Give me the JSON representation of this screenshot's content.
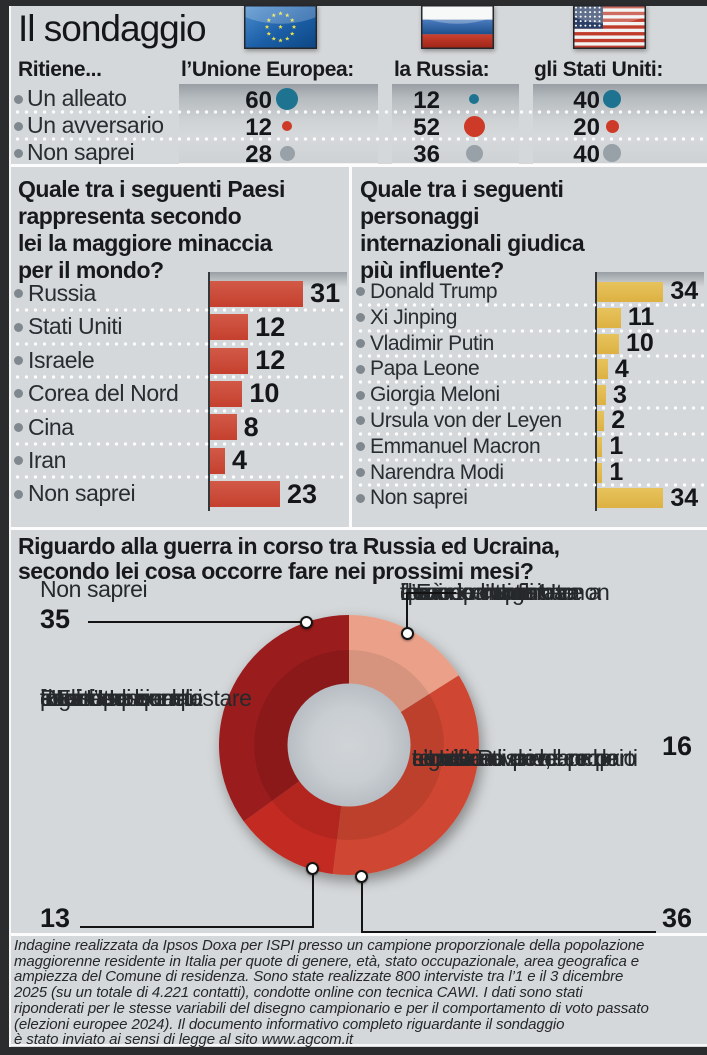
{
  "title": "Il sondaggio",
  "header": {
    "question": "Ritiene...",
    "flag_icons": [
      "eu-flag-icon",
      "russia-flag-icon",
      "usa-flag-icon"
    ]
  },
  "chart_data": [
    {
      "id": "stance-table",
      "type": "table",
      "title": "Ritiene...",
      "row_labels": [
        "Un alleato",
        "Un avversario",
        "Non saprei"
      ],
      "row_colors": [
        "#1d7390",
        "#cd3a28",
        "#98a1a7"
      ],
      "columns": [
        "l’Unione Europea:",
        "la Russia:",
        "gli Stati Uniti:"
      ],
      "series": [
        {
          "name": "l’Unione Europea:",
          "values": [
            60,
            12,
            28
          ]
        },
        {
          "name": "la Russia:",
          "values": [
            12,
            52,
            36
          ]
        },
        {
          "name": "gli Stati Uniti:",
          "values": [
            40,
            20,
            40
          ]
        }
      ]
    },
    {
      "id": "threat-bar",
      "type": "bar",
      "title": "Quale tra i seguenti Paesi rappresenta secondo lei la maggiore minaccia per il mondo?",
      "title_lines": [
        "Quale tra i seguenti Paesi",
        "rappresenta secondo",
        "lei la maggiore minaccia",
        "per il mondo?"
      ],
      "categories": [
        "Russia",
        "Stati Uniti",
        "Israele",
        "Corea del Nord",
        "Cina",
        "Iran",
        "Non saprei"
      ],
      "values": [
        31,
        12,
        12,
        10,
        8,
        4,
        23
      ],
      "bar_color": "#c5402e"
    },
    {
      "id": "influence-bar",
      "type": "bar",
      "title": "Quale tra i seguenti personaggi internazionali giudica più influente?",
      "title_lines": [
        "Quale tra i seguenti",
        "personaggi",
        "internazionali giudica",
        "più influente?"
      ],
      "categories": [
        "Donald Trump",
        "Xi Jinping",
        "Vladimir Putin",
        "Papa Leone",
        "Giorgia Meloni",
        "Ursula von der Leyen",
        "Emmanuel Macron",
        "Narendra Modi",
        "Non saprei"
      ],
      "values": [
        34,
        11,
        10,
        4,
        3,
        2,
        1,
        1,
        34
      ],
      "bar_color": "#ddb143"
    },
    {
      "id": "war-donut",
      "type": "pie",
      "donut": true,
      "title": "Riguardo alla guerra in corso tra Russia ed Ucraina, secondo lei cosa occorre fare nei prossimi mesi?",
      "title_lines": [
        "Riguardo alla guerra in corso tra Russia ed Ucraina,",
        "secondo lei cosa occorre fare nei prossimi mesi?"
      ],
      "slices": [
        {
          "value": 16,
          "color": "#eba189",
          "label": "L’Europa e gli Usa devono continuare a fornire armi fino a quando l’Ucraina non avrà riconquistato il suo territorio",
          "label_lines": [
            "L’Europa e gli Usa",
            "devono continuare a",
            "fornire armi fino a",
            "quando l’Ucraina non",
            "avrà riconquistato",
            "il suo territorio"
          ]
        },
        {
          "value": 36,
          "color": "#cf4733",
          "label": "L’Ucraina deve accettare un accordo con la Russia, anche a costo di perdere parti significative del proprio territorio",
          "label_lines": [
            "L’Ucraina deve",
            "accettare un accordo",
            "con la Russia, anche",
            "a costo di perdere parti",
            "significative del proprio",
            "territorio"
          ]
        },
        {
          "value": 13,
          "color": "#c32a21",
          "label": "L’Europa e gli Usa devono interrompere la fornitura di armi anche se questo permettesse alla Russia di conquistare tutta l’Ucraina",
          "label_lines": [
            "L’Europa",
            "e gli Usa",
            "devono",
            "interrompere la",
            "fornitura di armi",
            "anche se questo",
            "permettesse alla",
            "Russia di conquistare",
            "tutta l’Ucraina"
          ]
        },
        {
          "value": 35,
          "color": "#9a1b1f",
          "label": "Non saprei",
          "label_lines": [
            "Non saprei"
          ]
        }
      ]
    }
  ],
  "footer": {
    "lines": [
      "Indagine realizzata da Ipsos Doxa per ISPI presso un campione proporzionale della popolazione",
      "maggiorenne residente in Italia per quote di genere, età, stato occupazionale, area geografica e",
      "ampiezza del Comune di residenza. Sono state realizzate 800 interviste tra l’1 e il 3 dicembre",
      "2025 (su un totale di 4.221 contatti), condotte online con tecnica CAWI. I dati sono stati",
      "riponderati per le stesse variabili del disegno campionario e per il comportamento di voto passato",
      "(elezioni europee 2024). Il documento informativo completo riguardante il sondaggio",
      "è stato inviato ai sensi di legge al sito www.agcom.it"
    ]
  }
}
